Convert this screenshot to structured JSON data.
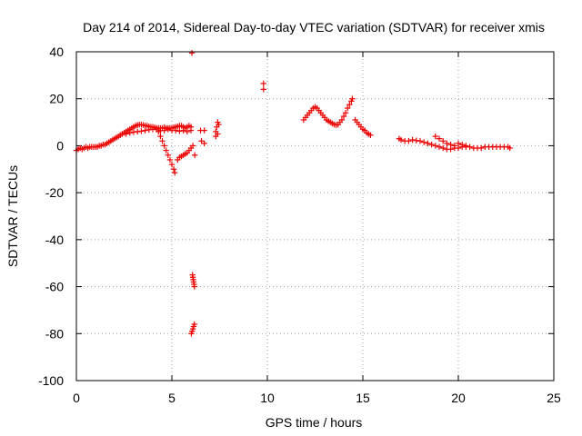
{
  "chart_data": {
    "type": "scatter",
    "title": "Day 214 of 2014, Sidereal Day-to-day VTEC variation (SDTVAR) for receiver xmis",
    "xlabel": "GPS time / hours",
    "ylabel": "SDTVAR / TECUs",
    "xlim": [
      0,
      25
    ],
    "ylim": [
      -100,
      40
    ],
    "x_ticks": [
      0,
      5,
      10,
      15,
      20,
      25
    ],
    "y_ticks": [
      -100,
      -80,
      -60,
      -40,
      -20,
      0,
      20,
      40
    ],
    "grid": true,
    "marker": "+",
    "color": "#ee0000",
    "series": [
      {
        "name": "xmis",
        "points": [
          [
            0.0,
            -2
          ],
          [
            0.1,
            -1.5
          ],
          [
            0.2,
            -1
          ],
          [
            0.3,
            -1.5
          ],
          [
            0.4,
            -1
          ],
          [
            0.5,
            -0.5
          ],
          [
            0.6,
            -1
          ],
          [
            0.7,
            -0.5
          ],
          [
            0.8,
            -0.5
          ],
          [
            0.9,
            -0.5
          ],
          [
            1.0,
            -0.5
          ],
          [
            1.1,
            -0.5
          ],
          [
            1.2,
            0
          ],
          [
            1.3,
            0
          ],
          [
            1.4,
            0.5
          ],
          [
            1.5,
            0.5
          ],
          [
            1.6,
            1
          ],
          [
            1.7,
            1.5
          ],
          [
            1.8,
            2
          ],
          [
            1.9,
            2.5
          ],
          [
            2.0,
            3
          ],
          [
            2.1,
            3.5
          ],
          [
            2.2,
            4
          ],
          [
            2.3,
            4.5
          ],
          [
            2.4,
            5
          ],
          [
            2.5,
            5.5
          ],
          [
            2.6,
            6
          ],
          [
            2.7,
            6.5
          ],
          [
            2.8,
            7
          ],
          [
            2.9,
            7.5
          ],
          [
            3.0,
            8
          ],
          [
            3.1,
            8.5
          ],
          [
            3.2,
            8.8
          ],
          [
            3.3,
            9
          ],
          [
            3.4,
            9
          ],
          [
            3.5,
            8.8
          ],
          [
            3.6,
            8.5
          ],
          [
            3.7,
            8.5
          ],
          [
            3.8,
            8.2
          ],
          [
            3.9,
            8
          ],
          [
            4.0,
            8
          ],
          [
            4.1,
            7.8
          ],
          [
            4.2,
            7.5
          ],
          [
            4.3,
            7.5
          ],
          [
            4.4,
            7.5
          ],
          [
            4.5,
            7.5
          ],
          [
            4.6,
            7.8
          ],
          [
            4.7,
            7.5
          ],
          [
            4.8,
            7.5
          ],
          [
            4.9,
            7.5
          ],
          [
            5.0,
            7.5
          ],
          [
            5.1,
            7.8
          ],
          [
            5.2,
            8
          ],
          [
            5.3,
            8.2
          ],
          [
            5.4,
            8.5
          ],
          [
            5.5,
            8.5
          ],
          [
            5.6,
            8
          ],
          [
            5.7,
            7.5
          ],
          [
            5.8,
            8
          ],
          [
            5.9,
            8.5
          ],
          [
            6.0,
            8
          ],
          [
            2.6,
            5
          ],
          [
            2.8,
            5.5
          ],
          [
            3.0,
            5.8
          ],
          [
            3.2,
            6
          ],
          [
            3.4,
            6.2
          ],
          [
            3.6,
            6.5
          ],
          [
            3.8,
            6.8
          ],
          [
            4.0,
            7
          ],
          [
            4.2,
            7
          ],
          [
            4.4,
            6.5
          ],
          [
            4.6,
            6.5
          ],
          [
            4.8,
            7
          ],
          [
            5.0,
            6.5
          ],
          [
            5.2,
            6.5
          ],
          [
            5.4,
            6.2
          ],
          [
            5.6,
            6.5
          ],
          [
            5.8,
            6
          ],
          [
            6.0,
            6.5
          ],
          [
            4.3,
            6
          ],
          [
            4.4,
            4
          ],
          [
            4.5,
            2
          ],
          [
            4.6,
            0
          ],
          [
            4.7,
            -2
          ],
          [
            4.8,
            -4
          ],
          [
            4.9,
            -6
          ],
          [
            5.0,
            -8
          ],
          [
            5.1,
            -10
          ],
          [
            5.15,
            -11.5
          ],
          [
            5.3,
            -6
          ],
          [
            5.4,
            -5
          ],
          [
            5.5,
            -4.5
          ],
          [
            5.6,
            -4
          ],
          [
            5.7,
            -3.5
          ],
          [
            5.8,
            -3
          ],
          [
            5.9,
            -2
          ],
          [
            6.0,
            -1
          ],
          [
            6.1,
            0
          ],
          [
            6.2,
            -4
          ],
          [
            6.05,
            39.5
          ],
          [
            6.08,
            -55
          ],
          [
            6.1,
            -56
          ],
          [
            6.12,
            -57
          ],
          [
            6.14,
            -58
          ],
          [
            6.16,
            -59
          ],
          [
            6.18,
            -60
          ],
          [
            6.02,
            -80
          ],
          [
            6.06,
            -79
          ],
          [
            6.1,
            -78
          ],
          [
            6.14,
            -77
          ],
          [
            6.18,
            -76
          ],
          [
            6.5,
            6.5
          ],
          [
            6.55,
            2
          ],
          [
            6.7,
            6.5
          ],
          [
            6.7,
            1
          ],
          [
            7.3,
            4
          ],
          [
            7.3,
            6
          ],
          [
            7.35,
            8
          ],
          [
            7.4,
            10
          ],
          [
            7.45,
            9
          ],
          [
            7.4,
            5
          ],
          [
            9.8,
            24
          ],
          [
            9.8,
            26.5
          ],
          [
            11.9,
            11
          ],
          [
            12.0,
            12
          ],
          [
            12.1,
            13
          ],
          [
            12.2,
            14
          ],
          [
            12.3,
            15
          ],
          [
            12.4,
            16
          ],
          [
            12.5,
            16.5
          ],
          [
            12.6,
            16
          ],
          [
            12.7,
            15
          ],
          [
            12.8,
            14
          ],
          [
            12.9,
            13
          ],
          [
            13.0,
            12
          ],
          [
            13.1,
            11
          ],
          [
            13.2,
            10.5
          ],
          [
            13.3,
            10
          ],
          [
            13.4,
            9.5
          ],
          [
            13.5,
            9
          ],
          [
            13.6,
            8.8
          ],
          [
            13.7,
            9
          ],
          [
            13.8,
            10
          ],
          [
            13.9,
            11
          ],
          [
            14.0,
            12.5
          ],
          [
            14.1,
            14
          ],
          [
            14.2,
            16
          ],
          [
            14.3,
            17.5
          ],
          [
            14.4,
            19
          ],
          [
            14.45,
            20
          ],
          [
            14.6,
            11
          ],
          [
            14.7,
            10
          ],
          [
            14.8,
            9
          ],
          [
            14.9,
            8
          ],
          [
            15.0,
            7
          ],
          [
            15.1,
            6.5
          ],
          [
            15.2,
            5.5
          ],
          [
            15.3,
            5
          ],
          [
            15.4,
            4.5
          ],
          [
            16.9,
            3
          ],
          [
            17.0,
            2.5
          ],
          [
            17.2,
            2
          ],
          [
            17.4,
            2
          ],
          [
            17.6,
            2.5
          ],
          [
            17.8,
            2.2
          ],
          [
            18.0,
            2
          ],
          [
            18.2,
            1.5
          ],
          [
            18.4,
            1
          ],
          [
            18.6,
            0.5
          ],
          [
            18.8,
            0
          ],
          [
            19.0,
            -0.5
          ],
          [
            19.2,
            -1
          ],
          [
            19.4,
            -1.5
          ],
          [
            19.6,
            -1.5
          ],
          [
            19.8,
            -1
          ],
          [
            20.0,
            -1
          ],
          [
            20.2,
            -0.5
          ],
          [
            20.4,
            -0.5
          ],
          [
            20.6,
            -0.5
          ],
          [
            20.8,
            -1
          ],
          [
            21.0,
            -1
          ],
          [
            21.2,
            -1
          ],
          [
            21.4,
            -0.5
          ],
          [
            21.6,
            -0.5
          ],
          [
            21.8,
            -0.5
          ],
          [
            22.0,
            -0.5
          ],
          [
            22.2,
            -0.5
          ],
          [
            22.4,
            -0.5
          ],
          [
            22.6,
            -0.5
          ],
          [
            22.7,
            -1
          ],
          [
            18.8,
            4
          ],
          [
            19.0,
            3
          ],
          [
            19.2,
            2
          ],
          [
            19.4,
            1
          ],
          [
            19.6,
            0.5
          ],
          [
            19.8,
            0
          ],
          [
            20.0,
            1
          ],
          [
            20.2,
            0.5
          ],
          [
            20.4,
            0
          ]
        ]
      }
    ]
  }
}
